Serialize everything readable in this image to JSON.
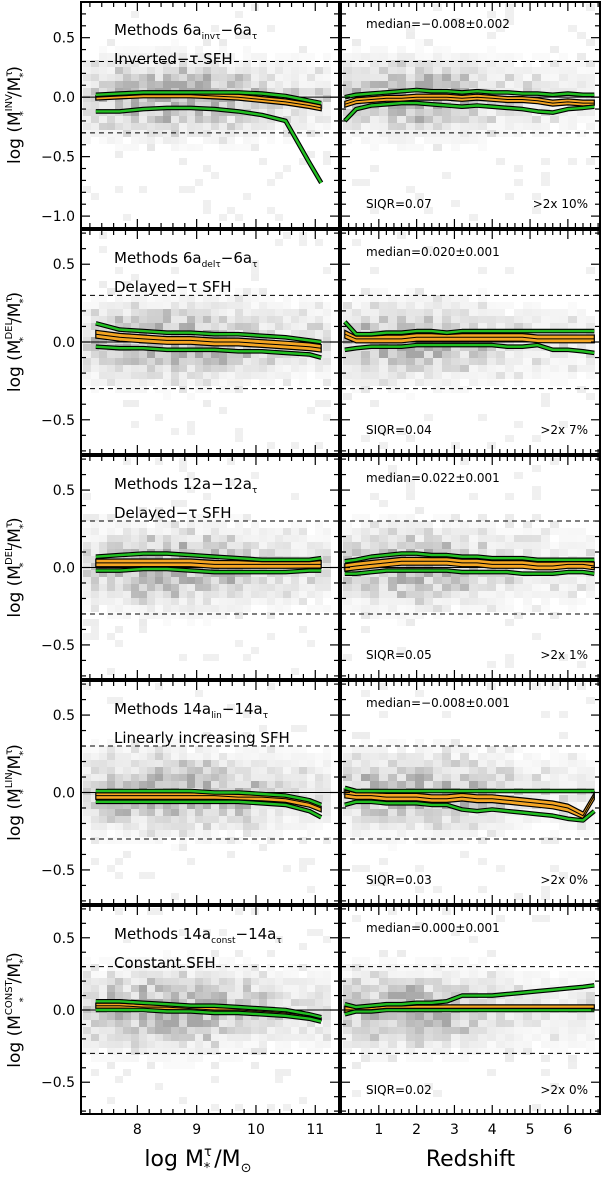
{
  "colors": {
    "band_fill": "#f5a623",
    "outer_line": "#22c022",
    "median_line": "#000000",
    "frame": "#000000",
    "density": "#6a6a6a"
  },
  "axes": {
    "left_xlabel": "log M",
    "left_xlabel_sup": "τ",
    "left_xlabel_sub": "*",
    "left_xlabel_tail": "/M",
    "left_xlabel_sun": "⊙",
    "right_xlabel": "Redshift",
    "left_xticks": [
      "8",
      "9",
      "10",
      "11"
    ],
    "right_xticks": [
      "1",
      "2",
      "3",
      "4",
      "5",
      "6"
    ]
  },
  "chart_data": [
    {
      "type": "line",
      "panel": "1-left",
      "title_parts": {
        "a": "Methods 6a",
        "sub1": "invτ",
        "b": "−6a",
        "sub2": "τ"
      },
      "subtitle": "Inverted−τ SFH",
      "ylabel": {
        "prefix": "log (M",
        "sup": "INV",
        "sub": "*",
        "mid": "/M",
        "sup2": "τ",
        "sub2": "*",
        "suffix": ")"
      },
      "ylim": [
        -1.1,
        0.8
      ],
      "yticks": [
        "0.5",
        "0.0",
        "−0.5",
        "−1.0"
      ],
      "xlim": [
        7.05,
        11.4
      ],
      "dashed_lines": [
        0.3,
        -0.3
      ],
      "x": [
        7.3,
        7.7,
        8.1,
        8.5,
        8.9,
        9.3,
        9.7,
        10.1,
        10.5,
        10.9,
        11.1
      ],
      "series": [
        {
          "role": "upper",
          "values": [
            0.02,
            0.03,
            0.04,
            0.04,
            0.04,
            0.04,
            0.04,
            0.03,
            0.01,
            -0.03,
            -0.05
          ]
        },
        {
          "role": "median",
          "values": [
            0.0,
            0.01,
            0.02,
            0.02,
            0.02,
            0.01,
            0.0,
            -0.02,
            -0.04,
            -0.07,
            -0.09
          ]
        },
        {
          "role": "lower",
          "values": [
            -0.12,
            -0.12,
            -0.1,
            -0.09,
            -0.09,
            -0.1,
            -0.12,
            -0.15,
            -0.2,
            -0.55,
            -0.72
          ]
        }
      ]
    },
    {
      "type": "line",
      "panel": "1-right",
      "median_label": "median=−0.008±0.002",
      "siqr": "SIQR=0.07",
      "fraction": ">2x 10%",
      "ylim": [
        -1.1,
        0.8
      ],
      "xlim": [
        0.0,
        6.85
      ],
      "dashed_lines": [
        0.3,
        -0.3
      ],
      "x": [
        0.1,
        0.4,
        0.8,
        1.2,
        1.6,
        2.0,
        2.4,
        2.8,
        3.2,
        3.6,
        4.0,
        4.4,
        4.8,
        5.2,
        5.6,
        6.0,
        6.4,
        6.7
      ],
      "series": [
        {
          "role": "upper",
          "values": [
            0.0,
            0.02,
            0.03,
            0.04,
            0.05,
            0.06,
            0.05,
            0.05,
            0.04,
            0.05,
            0.04,
            0.04,
            0.03,
            0.03,
            0.02,
            0.03,
            0.02,
            0.02
          ]
        },
        {
          "role": "median",
          "values": [
            -0.06,
            -0.03,
            -0.02,
            -0.01,
            -0.01,
            0.0,
            0.0,
            0.0,
            -0.01,
            0.0,
            -0.01,
            -0.02,
            -0.02,
            -0.03,
            -0.05,
            -0.04,
            -0.05,
            -0.05
          ]
        },
        {
          "role": "lower",
          "values": [
            -0.2,
            -0.1,
            -0.07,
            -0.06,
            -0.05,
            -0.05,
            -0.06,
            -0.07,
            -0.08,
            -0.07,
            -0.08,
            -0.09,
            -0.1,
            -0.12,
            -0.13,
            -0.1,
            -0.09,
            -0.08
          ]
        }
      ]
    },
    {
      "type": "line",
      "panel": "2-left",
      "title_parts": {
        "a": "Methods 6a",
        "sub1": "delτ",
        "b": "−6a",
        "sub2": "τ"
      },
      "subtitle": "Delayed−τ SFH",
      "ylabel": {
        "prefix": "log (M",
        "sup": "DEL",
        "sub": "*",
        "mid": "/M",
        "sup2": "τ",
        "sub2": "*",
        "suffix": ")"
      },
      "ylim": [
        -0.72,
        0.72
      ],
      "yticks": [
        "0.5",
        "0.0",
        "−0.5"
      ],
      "xlim": [
        7.05,
        11.4
      ],
      "dashed_lines": [
        0.3,
        -0.3
      ],
      "x": [
        7.3,
        7.7,
        8.1,
        8.5,
        8.9,
        9.3,
        9.7,
        10.1,
        10.5,
        10.9,
        11.1
      ],
      "series": [
        {
          "role": "upper",
          "values": [
            0.12,
            0.08,
            0.07,
            0.06,
            0.06,
            0.05,
            0.05,
            0.04,
            0.03,
            0.01,
            0.0
          ]
        },
        {
          "role": "median",
          "values": [
            0.05,
            0.03,
            0.02,
            0.01,
            0.01,
            0.0,
            0.0,
            -0.01,
            -0.02,
            -0.03,
            -0.04
          ]
        },
        {
          "role": "lower",
          "values": [
            -0.03,
            -0.04,
            -0.04,
            -0.05,
            -0.05,
            -0.05,
            -0.06,
            -0.06,
            -0.07,
            -0.08,
            -0.1
          ]
        }
      ]
    },
    {
      "type": "line",
      "panel": "2-right",
      "median_label": "median=0.020±0.001",
      "siqr": "SIQR=0.04",
      "fraction": ">2x 7%",
      "ylim": [
        -0.72,
        0.72
      ],
      "xlim": [
        0.0,
        6.85
      ],
      "dashed_lines": [
        0.3,
        -0.3
      ],
      "x": [
        0.1,
        0.4,
        0.8,
        1.2,
        1.6,
        2.0,
        2.4,
        2.8,
        3.2,
        3.6,
        4.0,
        4.4,
        4.8,
        5.2,
        5.6,
        6.0,
        6.4,
        6.7
      ],
      "series": [
        {
          "role": "upper",
          "values": [
            0.13,
            0.05,
            0.05,
            0.06,
            0.06,
            0.07,
            0.07,
            0.06,
            0.07,
            0.07,
            0.07,
            0.07,
            0.07,
            0.07,
            0.07,
            0.07,
            0.07,
            0.07
          ]
        },
        {
          "role": "median",
          "values": [
            0.05,
            0.02,
            0.02,
            0.02,
            0.02,
            0.03,
            0.03,
            0.03,
            0.03,
            0.03,
            0.03,
            0.03,
            0.03,
            0.02,
            0.02,
            0.02,
            0.02,
            0.02
          ]
        },
        {
          "role": "lower",
          "values": [
            -0.05,
            -0.04,
            -0.03,
            -0.03,
            -0.03,
            -0.02,
            -0.02,
            -0.02,
            -0.02,
            -0.02,
            -0.02,
            -0.03,
            -0.03,
            -0.02,
            -0.05,
            -0.05,
            -0.06,
            -0.07
          ]
        }
      ]
    },
    {
      "type": "line",
      "panel": "3-left",
      "title_parts": {
        "a": "Methods 12a−12a",
        "sub1": "",
        "b": "",
        "sub2": "τ"
      },
      "subtitle": "Delayed−τ SFH",
      "ylabel": {
        "prefix": "log (M",
        "sup": "DEL",
        "sub": "*",
        "mid": "/M",
        "sup2": "τ",
        "sub2": "*",
        "suffix": ")"
      },
      "ylim": [
        -0.72,
        0.72
      ],
      "yticks": [
        "0.5",
        "0.0",
        "−0.5"
      ],
      "xlim": [
        7.05,
        11.4
      ],
      "dashed_lines": [
        0.3,
        -0.3
      ],
      "x": [
        7.3,
        7.7,
        8.1,
        8.5,
        8.9,
        9.3,
        9.7,
        10.1,
        10.5,
        10.9,
        11.1
      ],
      "series": [
        {
          "role": "upper",
          "values": [
            0.07,
            0.08,
            0.09,
            0.09,
            0.08,
            0.07,
            0.06,
            0.05,
            0.05,
            0.05,
            0.06
          ]
        },
        {
          "role": "median",
          "values": [
            0.03,
            0.03,
            0.03,
            0.03,
            0.03,
            0.02,
            0.02,
            0.02,
            0.02,
            0.02,
            0.02
          ]
        },
        {
          "role": "lower",
          "values": [
            -0.02,
            -0.02,
            -0.01,
            -0.01,
            -0.02,
            -0.03,
            -0.03,
            -0.03,
            -0.03,
            -0.02,
            -0.02
          ]
        }
      ]
    },
    {
      "type": "line",
      "panel": "3-right",
      "median_label": "median=0.022±0.001",
      "siqr": "SIQR=0.05",
      "fraction": ">2x 1%",
      "ylim": [
        -0.72,
        0.72
      ],
      "xlim": [
        0.0,
        6.85
      ],
      "dashed_lines": [
        0.3,
        -0.3
      ],
      "x": [
        0.1,
        0.4,
        0.8,
        1.2,
        1.6,
        2.0,
        2.4,
        2.8,
        3.2,
        3.6,
        4.0,
        4.4,
        4.8,
        5.2,
        5.6,
        6.0,
        6.4,
        6.7
      ],
      "series": [
        {
          "role": "upper",
          "values": [
            0.04,
            0.05,
            0.07,
            0.08,
            0.09,
            0.09,
            0.08,
            0.08,
            0.07,
            0.07,
            0.06,
            0.06,
            0.06,
            0.05,
            0.05,
            0.05,
            0.05,
            0.05
          ]
        },
        {
          "role": "median",
          "values": [
            0.0,
            0.01,
            0.02,
            0.03,
            0.04,
            0.04,
            0.04,
            0.04,
            0.03,
            0.03,
            0.02,
            0.02,
            0.02,
            0.01,
            0.01,
            0.02,
            0.02,
            0.01
          ]
        },
        {
          "role": "lower",
          "values": [
            -0.04,
            -0.04,
            -0.03,
            -0.02,
            -0.02,
            -0.02,
            -0.02,
            -0.02,
            -0.03,
            -0.03,
            -0.03,
            -0.03,
            -0.04,
            -0.04,
            -0.04,
            -0.03,
            -0.03,
            -0.04
          ]
        }
      ]
    },
    {
      "type": "line",
      "panel": "4-left",
      "title_parts": {
        "a": "Methods 14a",
        "sub1": "lin",
        "b": "−14a",
        "sub2": "τ"
      },
      "subtitle": "Linearly increasing SFH",
      "ylabel": {
        "prefix": "log (M",
        "sup": "LIN",
        "sub": "*",
        "mid": "/M",
        "sup2": "τ",
        "sub2": "*",
        "suffix": ")"
      },
      "ylim": [
        -0.72,
        0.72
      ],
      "yticks": [
        "0.5",
        "0.0",
        "−0.5"
      ],
      "xlim": [
        7.05,
        11.4
      ],
      "dashed_lines": [
        0.3,
        -0.3
      ],
      "x": [
        7.3,
        7.7,
        8.1,
        8.5,
        8.9,
        9.3,
        9.7,
        10.1,
        10.5,
        10.9,
        11.1
      ],
      "series": [
        {
          "role": "upper",
          "values": [
            0.01,
            0.01,
            0.01,
            0.01,
            0.01,
            0.0,
            0.0,
            -0.01,
            -0.02,
            -0.05,
            -0.08
          ]
        },
        {
          "role": "median",
          "values": [
            -0.02,
            -0.02,
            -0.02,
            -0.02,
            -0.02,
            -0.02,
            -0.03,
            -0.03,
            -0.04,
            -0.07,
            -0.1
          ]
        },
        {
          "role": "lower",
          "values": [
            -0.06,
            -0.06,
            -0.06,
            -0.06,
            -0.06,
            -0.06,
            -0.06,
            -0.07,
            -0.08,
            -0.12,
            -0.16
          ]
        }
      ]
    },
    {
      "type": "line",
      "panel": "4-right",
      "median_label": "median=−0.008±0.001",
      "siqr": "SIQR=0.03",
      "fraction": ">2x 0%",
      "ylim": [
        -0.72,
        0.72
      ],
      "xlim": [
        0.0,
        6.85
      ],
      "dashed_lines": [
        0.3,
        -0.3
      ],
      "x": [
        0.1,
        0.4,
        0.8,
        1.2,
        1.6,
        2.0,
        2.4,
        2.8,
        3.2,
        3.6,
        4.0,
        4.4,
        4.8,
        5.2,
        5.6,
        6.0,
        6.4,
        6.7
      ],
      "series": [
        {
          "role": "upper",
          "values": [
            0.03,
            0.01,
            0.01,
            0.01,
            0.01,
            0.01,
            0.01,
            0.01,
            0.01,
            0.01,
            0.01,
            0.01,
            0.01,
            0.01,
            0.01,
            0.01,
            0.01,
            0.01
          ]
        },
        {
          "role": "median",
          "values": [
            -0.01,
            -0.02,
            -0.02,
            -0.03,
            -0.03,
            -0.03,
            -0.04,
            -0.04,
            -0.03,
            -0.04,
            -0.04,
            -0.05,
            -0.06,
            -0.07,
            -0.08,
            -0.1,
            -0.15,
            -0.02
          ]
        },
        {
          "role": "lower",
          "values": [
            -0.08,
            -0.06,
            -0.06,
            -0.07,
            -0.07,
            -0.07,
            -0.08,
            -0.08,
            -0.11,
            -0.12,
            -0.11,
            -0.12,
            -0.13,
            -0.14,
            -0.15,
            -0.17,
            -0.18,
            -0.12
          ]
        }
      ]
    },
    {
      "type": "line",
      "panel": "5-left",
      "title_parts": {
        "a": "Methods 14a",
        "sub1": "const",
        "b": "−14a",
        "sub2": "τ"
      },
      "subtitle": "Constant SFH",
      "ylabel": {
        "prefix": "log (M",
        "sup": "CONST",
        "sub": "*",
        "mid": "/M",
        "sup2": "τ",
        "sub2": "*",
        "suffix": ")"
      },
      "ylim": [
        -0.72,
        0.72
      ],
      "yticks": [
        "0.5",
        "0.0",
        "−0.5"
      ],
      "xlim": [
        7.05,
        11.4
      ],
      "dashed_lines": [
        0.3,
        -0.3
      ],
      "x": [
        7.3,
        7.7,
        8.1,
        8.5,
        8.9,
        9.3,
        9.7,
        10.1,
        10.5,
        10.9,
        11.1
      ],
      "series": [
        {
          "role": "upper",
          "values": [
            0.06,
            0.06,
            0.05,
            0.04,
            0.03,
            0.03,
            0.02,
            0.01,
            0.0,
            -0.03,
            -0.05
          ]
        },
        {
          "role": "median",
          "values": [
            0.03,
            0.03,
            0.02,
            0.02,
            0.01,
            0.0,
            0.0,
            -0.01,
            -0.02,
            -0.04,
            -0.06
          ]
        },
        {
          "role": "lower",
          "values": [
            0.0,
            0.0,
            0.0,
            -0.01,
            -0.01,
            -0.02,
            -0.02,
            -0.03,
            -0.04,
            -0.06,
            -0.08
          ]
        }
      ]
    },
    {
      "type": "line",
      "panel": "5-right",
      "median_label": "median=0.000±0.001",
      "siqr": "SIQR=0.02",
      "fraction": ">2x 0%",
      "ylim": [
        -0.72,
        0.72
      ],
      "xlim": [
        0.0,
        6.85
      ],
      "dashed_lines": [
        0.3,
        -0.3
      ],
      "x": [
        0.1,
        0.4,
        0.8,
        1.2,
        1.6,
        2.0,
        2.4,
        2.8,
        3.2,
        3.6,
        4.0,
        4.4,
        4.8,
        5.2,
        5.6,
        6.0,
        6.4,
        6.7
      ],
      "series": [
        {
          "role": "upper",
          "values": [
            0.04,
            0.02,
            0.03,
            0.04,
            0.04,
            0.05,
            0.05,
            0.06,
            0.1,
            0.1,
            0.1,
            0.11,
            0.12,
            0.13,
            0.14,
            0.15,
            0.16,
            0.17
          ]
        },
        {
          "role": "median",
          "values": [
            0.0,
            0.0,
            0.0,
            0.01,
            0.01,
            0.01,
            0.01,
            0.01,
            0.01,
            0.01,
            0.01,
            0.01,
            0.01,
            0.01,
            0.01,
            0.01,
            0.01,
            0.01
          ]
        },
        {
          "role": "lower",
          "values": [
            -0.03,
            -0.01,
            -0.01,
            0.0,
            0.0,
            0.0,
            0.0,
            0.0,
            0.0,
            0.0,
            0.0,
            0.0,
            0.0,
            0.0,
            0.0,
            0.0,
            0.0,
            0.0
          ]
        }
      ]
    }
  ]
}
